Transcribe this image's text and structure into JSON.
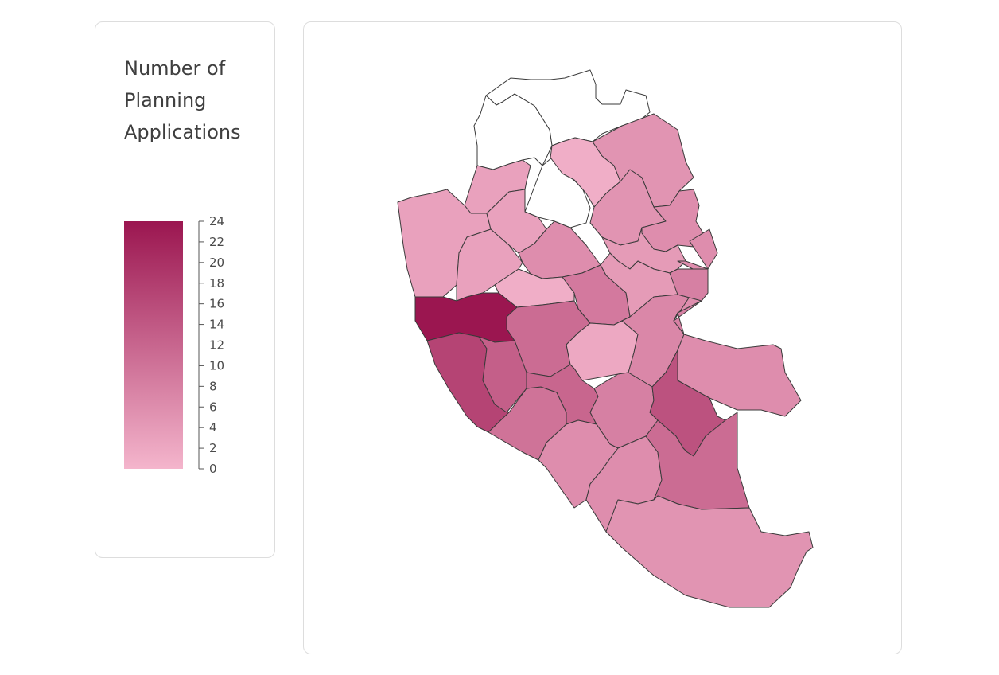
{
  "legend": {
    "title": "Number of Planning Applications",
    "min": 0,
    "max": 24,
    "ticks": [
      0,
      2,
      4,
      6,
      8,
      10,
      12,
      14,
      16,
      18,
      20,
      22,
      24
    ],
    "color_low": "#f4b5cc",
    "color_high": "#9b1650"
  },
  "map": {
    "border_color": "#3a3a3a",
    "no_data_color": "#ffffff",
    "wards": [
      {
        "id": "north-1",
        "value": null
      },
      {
        "id": "north-2",
        "value": null
      },
      {
        "id": "north-3",
        "value": null
      },
      {
        "id": "north-4",
        "value": 1
      },
      {
        "id": "north-5",
        "value": 5
      },
      {
        "id": "north-6",
        "value": 5
      },
      {
        "id": "north-7",
        "value": 6
      },
      {
        "id": "north-8",
        "value": 3
      },
      {
        "id": "north-9",
        "value": 3
      },
      {
        "id": "north-10",
        "value": 3
      },
      {
        "id": "north-11",
        "value": 3
      },
      {
        "id": "north-12",
        "value": 6
      },
      {
        "id": "north-13",
        "value": 4
      },
      {
        "id": "north-14",
        "value": 4
      },
      {
        "id": "north-15",
        "value": 1
      },
      {
        "id": "centre-1",
        "value": 9
      },
      {
        "id": "centre-2",
        "value": 24
      },
      {
        "id": "centre-3",
        "value": 11
      },
      {
        "id": "centre-4",
        "value": 2
      },
      {
        "id": "centre-5",
        "value": 7
      },
      {
        "id": "centre-6",
        "value": 6
      },
      {
        "id": "centre-7",
        "value": 6
      },
      {
        "id": "centre-8",
        "value": 8
      },
      {
        "id": "south-1",
        "value": 17
      },
      {
        "id": "south-2",
        "value": 13
      },
      {
        "id": "south-3",
        "value": 10
      },
      {
        "id": "south-4",
        "value": 12
      },
      {
        "id": "south-5",
        "value": 8
      },
      {
        "id": "south-6",
        "value": 15
      },
      {
        "id": "south-7",
        "value": 6
      },
      {
        "id": "south-8",
        "value": 6
      },
      {
        "id": "south-9",
        "value": 11
      },
      {
        "id": "south-10",
        "value": 5
      }
    ]
  }
}
